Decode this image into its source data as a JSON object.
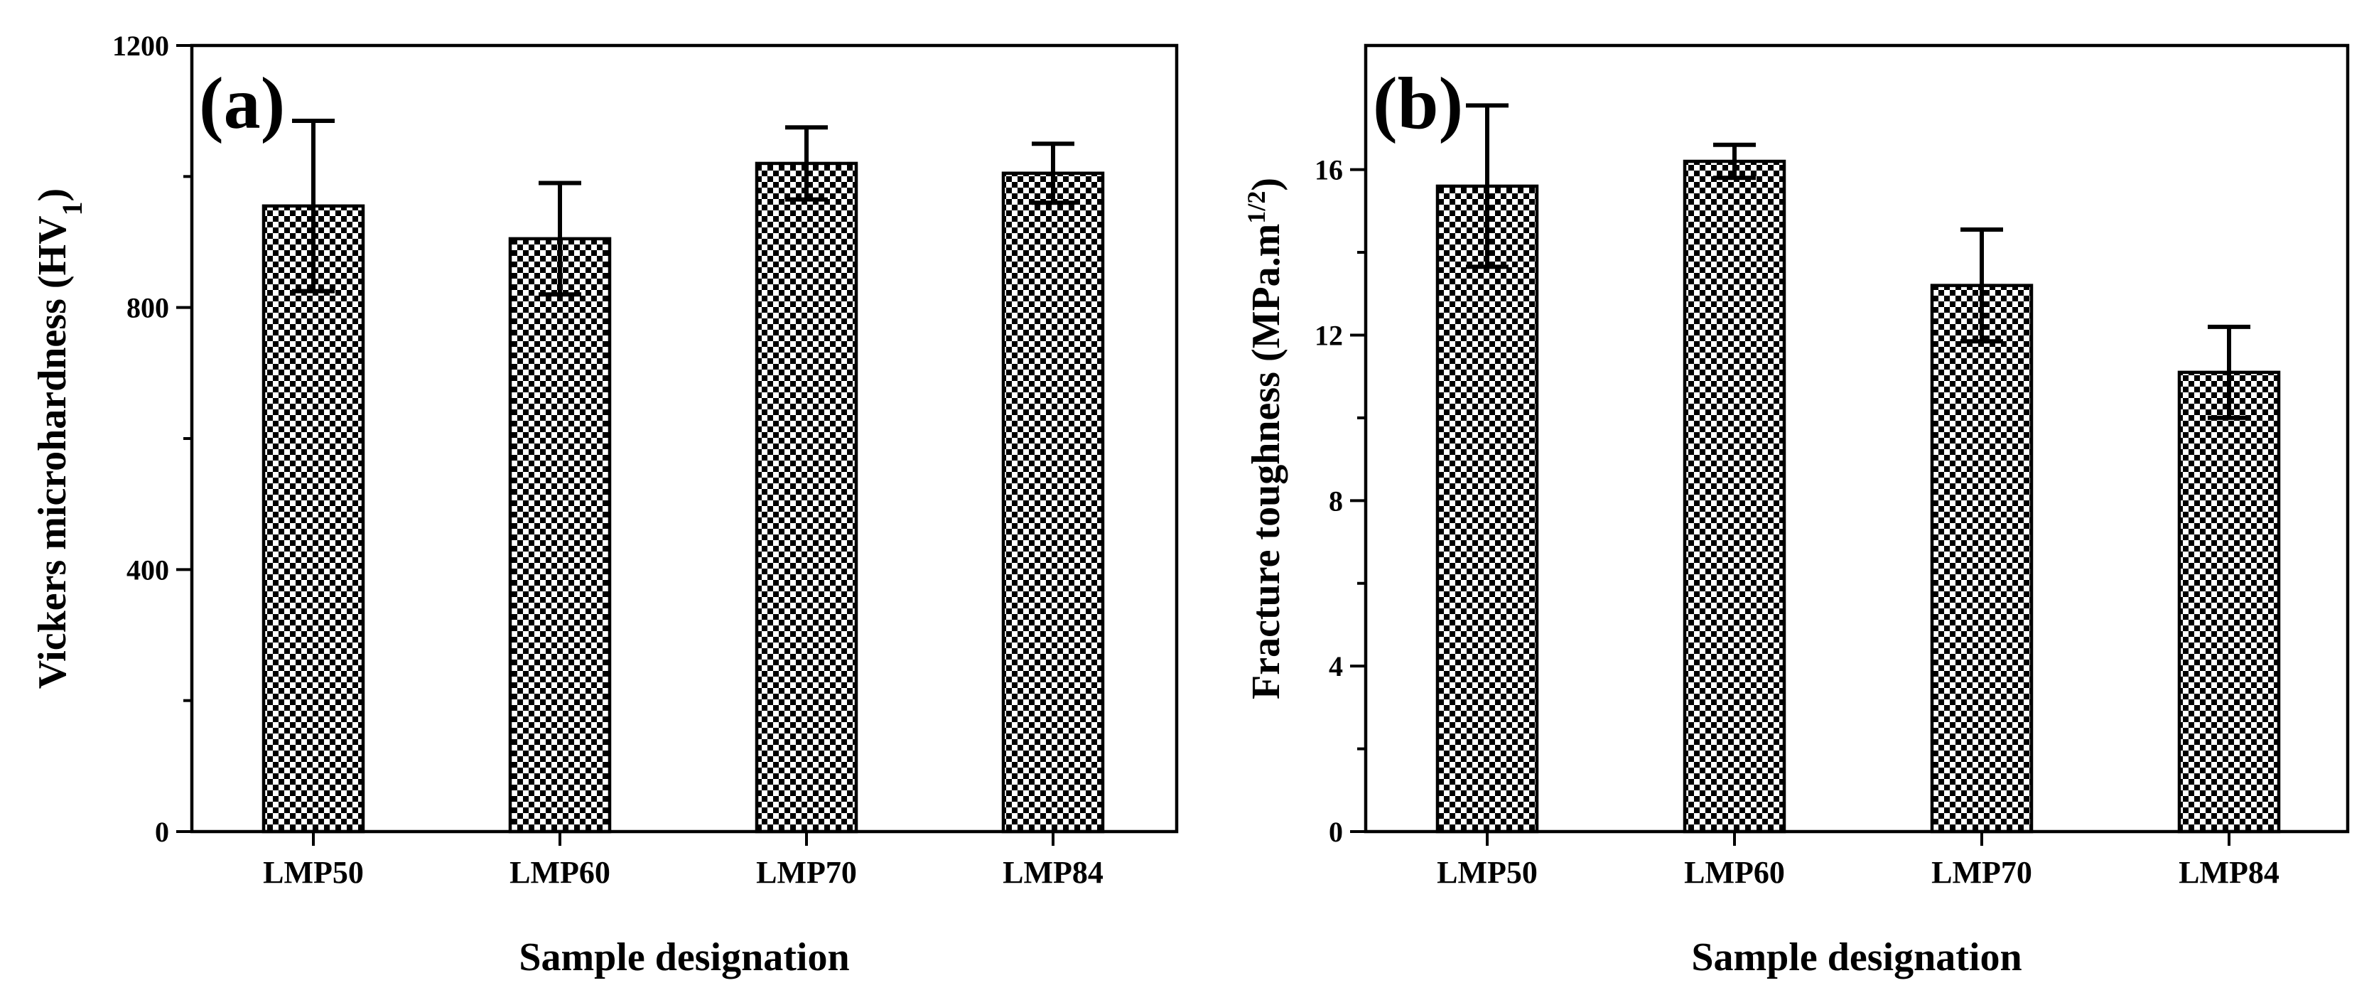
{
  "chart_data": [
    {
      "type": "bar",
      "panel": "(a)",
      "categories": [
        "LMP50",
        "LMP60",
        "LMP70",
        "LMP84"
      ],
      "values": [
        955,
        905,
        1020,
        1005
      ],
      "errors": [
        130,
        85,
        55,
        45
      ],
      "xlabel": "Sample designation",
      "ylabel": "Vickers microhardness (HV",
      "ylabel_sub": "1",
      "ylabel_end": ")",
      "ylim": [
        0,
        1200
      ],
      "yticks": [
        "0",
        "400",
        "800",
        "1200"
      ],
      "grid": false,
      "pattern": "checkerboard"
    },
    {
      "type": "bar",
      "panel": "(b)",
      "categories": [
        "LMP50",
        "LMP60",
        "LMP70",
        "LMP84"
      ],
      "values": [
        15.6,
        16.2,
        13.2,
        11.1
      ],
      "errors": [
        1.95,
        0.4,
        1.35,
        1.1
      ],
      "xlabel": "Sample designation",
      "ylabel": "Fracture toughness (MPa.m",
      "ylabel_sup": "1/2",
      "ylabel_end": ")",
      "ylim": [
        0,
        19
      ],
      "yticks": [
        "0",
        "4",
        "8",
        "12",
        "16"
      ],
      "grid": false,
      "pattern": "checkerboard"
    }
  ]
}
